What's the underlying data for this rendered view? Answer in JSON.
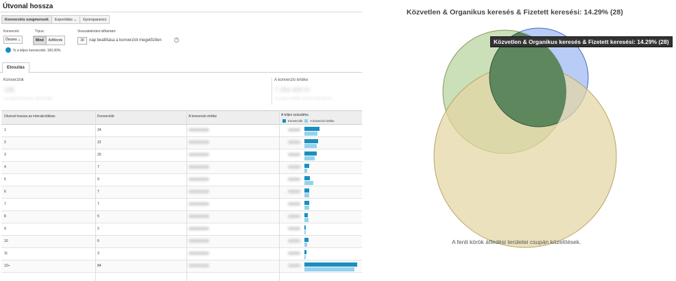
{
  "report": {
    "title": "Útvonal hossza",
    "toolbar": [
      "Konverziós szegmensek",
      "Exportálás ⌄",
      "Gyorsparancs"
    ],
    "filters": {
      "conversion_label": "Konverzió:",
      "conversion_value": "Összes ⌄",
      "type_label": "Típus:",
      "type_options": [
        "Mind",
        "AdWords"
      ],
      "lookback_label": "Visszatekintési időtartam:",
      "lookback_value": "30",
      "lookback_suffix": "nap beállítása a konverziót megelőzően",
      "help_icon": "?",
      "pct_text": "% a teljes konverziók: 100,00%"
    },
    "tab": "Eloszlás",
    "metrics": {
      "conversions_label": "Konverziók",
      "conversions_value": "196",
      "conversions_sub": "% a teljes konverziók: 100,00 (196)",
      "value_label": "A konverzió értéke",
      "value_value": "7 254 400 Ft",
      "value_sub": "% a teljes értékből: 100,00 (7 254 400 Ft)"
    },
    "table": {
      "headers": [
        "Útvonal hossza az interakciókban",
        "Konverziók",
        "A konverzió értéke",
        "A teljes százaléka"
      ],
      "legend": [
        "Konverziók",
        "A konverzió értéke"
      ],
      "rows": [
        {
          "path": "1",
          "conversions": "24",
          "bars": [
            0.2,
            0.17
          ]
        },
        {
          "path": "2",
          "conversions": "22",
          "bars": [
            0.18,
            0.16
          ]
        },
        {
          "path": "3",
          "conversions": "20",
          "bars": [
            0.165,
            0.135
          ]
        },
        {
          "path": "4",
          "conversions": "7",
          "bars": [
            0.06,
            0.04
          ]
        },
        {
          "path": "5",
          "conversions": "9",
          "bars": [
            0.075,
            0.12
          ]
        },
        {
          "path": "6",
          "conversions": "7",
          "bars": [
            0.06,
            0.06
          ]
        },
        {
          "path": "7",
          "conversions": "7",
          "bars": [
            0.06,
            0.06
          ]
        },
        {
          "path": "8",
          "conversions": "5",
          "bars": [
            0.045,
            0.05
          ]
        },
        {
          "path": "9",
          "conversions": "2",
          "bars": [
            0.02,
            0.02
          ]
        },
        {
          "path": "10",
          "conversions": "6",
          "bars": [
            0.05,
            0.04
          ]
        },
        {
          "path": "11",
          "conversions": "3",
          "bars": [
            0.027,
            0.02
          ]
        },
        {
          "path": "12+",
          "conversions": "84",
          "bars": [
            0.7,
            0.66
          ]
        }
      ]
    }
  },
  "venn": {
    "title": "Közvetlen & Organikus keresés & Fizetett keresési: 14.29% (28)",
    "tooltip": "Közvetlen & Organikus keresés & Fizetett keresési: 14.29% (28)",
    "note": "A fenti körök átfedési területei csupán közelítések.",
    "colors": {
      "green": "#a9c98a",
      "blue": "#a8bff2",
      "tan": "#e3d6a4",
      "overlap": "#5e875e"
    }
  }
}
